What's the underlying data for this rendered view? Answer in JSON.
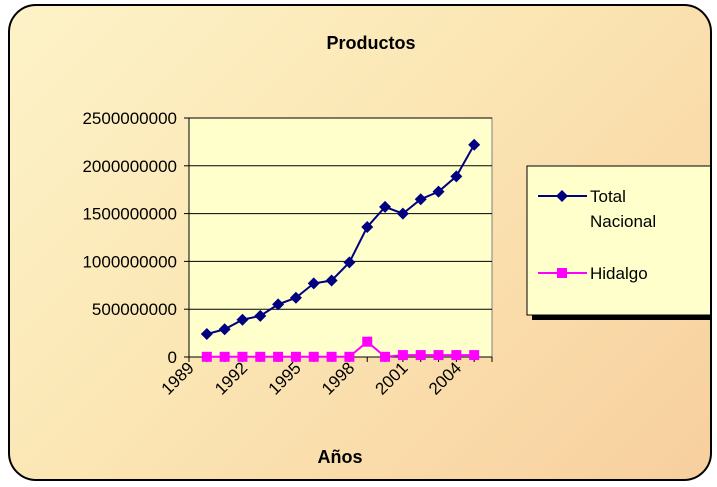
{
  "chart_data": {
    "type": "line",
    "title": "Productos",
    "xlabel": "Años",
    "ylabel": "",
    "x": [
      1990,
      1991,
      1992,
      1993,
      1994,
      1995,
      1996,
      1997,
      1998,
      1999,
      2000,
      2001,
      2002,
      2003,
      2004,
      2005
    ],
    "x_ticks": [
      "1989",
      "1992",
      "1995",
      "1998",
      "2001",
      "2004"
    ],
    "y_ticks": [
      "0",
      "500000000",
      "1000000000",
      "1500000000",
      "2000000000",
      "2500000000"
    ],
    "ylim": [
      0,
      2500000000
    ],
    "grid": true,
    "legend_position": "right",
    "series": [
      {
        "name_lines": [
          "Total",
          "Nacional"
        ],
        "name": "Total Nacional",
        "color": "#000080",
        "marker": "diamond",
        "values": [
          240000000,
          290000000,
          390000000,
          430000000,
          550000000,
          620000000,
          770000000,
          800000000,
          990000000,
          1360000000,
          1570000000,
          1500000000,
          1650000000,
          1730000000,
          1890000000,
          2220000000
        ]
      },
      {
        "name_lines": [
          "Hidalgo"
        ],
        "name": "Hidalgo",
        "color": "#ff00ff",
        "marker": "square",
        "values": [
          2000000,
          2000000,
          2000000,
          2000000,
          2000000,
          2000000,
          2000000,
          2000000,
          2000000,
          160000000,
          2000000,
          20000000,
          20000000,
          20000000,
          20000000,
          20000000
        ]
      }
    ]
  }
}
